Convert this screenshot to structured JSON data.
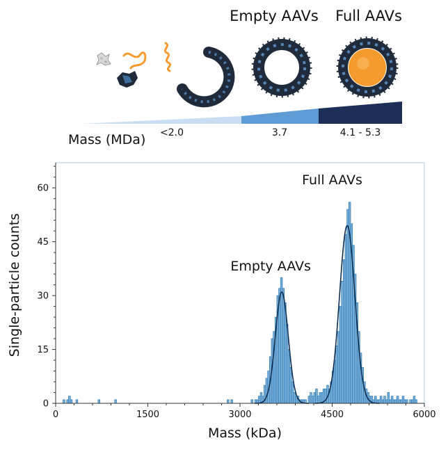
{
  "header": {
    "empty_label": "Empty AAVs",
    "full_label": "Full AAVs",
    "mass_label": "Mass (MDa)",
    "wedge_labels": [
      "<2.0",
      "3.7",
      "4.1 - 5.3"
    ]
  },
  "colors": {
    "bar_fill": "#7fb1d9",
    "bar_edge": "#2f7fb9",
    "fit_curve": "#0e2f52",
    "wedge_light": "#c9def3",
    "wedge_mid": "#5f9cd5",
    "wedge_dark": "#1d2f57",
    "orange": "#f59a2e",
    "capsid": "#1f2b3a"
  },
  "chart_data": {
    "type": "bar",
    "title": "",
    "xlabel": "Mass (kDa)",
    "ylabel": "Single-particle counts",
    "xlim": [
      0,
      6000
    ],
    "ylim": [
      0,
      67
    ],
    "xticks": [
      0,
      1500,
      3000,
      4500,
      6000
    ],
    "yticks": [
      0,
      15,
      30,
      45,
      60
    ],
    "bin_width": 30,
    "annotations": [
      {
        "text": "Empty AAVs",
        "x": 3500,
        "y": 37
      },
      {
        "text": "Full AAVs",
        "x": 4500,
        "y": 61
      }
    ],
    "histogram": [
      [
        120,
        1
      ],
      [
        180,
        1
      ],
      [
        210,
        2
      ],
      [
        240,
        1
      ],
      [
        330,
        1
      ],
      [
        690,
        1
      ],
      [
        960,
        1
      ],
      [
        2790,
        1
      ],
      [
        2850,
        1
      ],
      [
        3180,
        1
      ],
      [
        3240,
        1
      ],
      [
        3270,
        1
      ],
      [
        3300,
        2
      ],
      [
        3330,
        3
      ],
      [
        3360,
        2
      ],
      [
        3390,
        5
      ],
      [
        3420,
        7
      ],
      [
        3450,
        9
      ],
      [
        3480,
        13
      ],
      [
        3510,
        18
      ],
      [
        3540,
        20
      ],
      [
        3570,
        24
      ],
      [
        3600,
        30
      ],
      [
        3630,
        32
      ],
      [
        3660,
        35
      ],
      [
        3690,
        32
      ],
      [
        3720,
        28
      ],
      [
        3750,
        22
      ],
      [
        3780,
        15
      ],
      [
        3810,
        10
      ],
      [
        3840,
        6
      ],
      [
        3870,
        3
      ],
      [
        3900,
        2
      ],
      [
        3930,
        2
      ],
      [
        3960,
        1
      ],
      [
        3990,
        1
      ],
      [
        4020,
        1
      ],
      [
        4050,
        1
      ],
      [
        4110,
        2
      ],
      [
        4140,
        3
      ],
      [
        4170,
        2
      ],
      [
        4200,
        3
      ],
      [
        4230,
        4
      ],
      [
        4260,
        2
      ],
      [
        4290,
        3
      ],
      [
        4320,
        3
      ],
      [
        4350,
        4
      ],
      [
        4380,
        4
      ],
      [
        4410,
        5
      ],
      [
        4440,
        4
      ],
      [
        4470,
        6
      ],
      [
        4500,
        9
      ],
      [
        4530,
        12
      ],
      [
        4560,
        16
      ],
      [
        4590,
        20
      ],
      [
        4620,
        27
      ],
      [
        4650,
        34
      ],
      [
        4680,
        40
      ],
      [
        4710,
        47
      ],
      [
        4740,
        54
      ],
      [
        4770,
        56
      ],
      [
        4800,
        50
      ],
      [
        4830,
        44
      ],
      [
        4860,
        36
      ],
      [
        4890,
        28
      ],
      [
        4920,
        20
      ],
      [
        4950,
        14
      ],
      [
        4980,
        10
      ],
      [
        5010,
        6
      ],
      [
        5040,
        4
      ],
      [
        5070,
        3
      ],
      [
        5100,
        2
      ],
      [
        5130,
        2
      ],
      [
        5160,
        1
      ],
      [
        5190,
        2
      ],
      [
        5220,
        1
      ],
      [
        5250,
        1
      ],
      [
        5280,
        2
      ],
      [
        5310,
        1
      ],
      [
        5340,
        2
      ],
      [
        5370,
        1
      ],
      [
        5400,
        3
      ],
      [
        5430,
        1
      ],
      [
        5460,
        2
      ],
      [
        5490,
        1
      ],
      [
        5520,
        1
      ],
      [
        5550,
        2
      ],
      [
        5580,
        1
      ],
      [
        5610,
        1
      ],
      [
        5640,
        2
      ],
      [
        5670,
        1
      ],
      [
        5700,
        1
      ],
      [
        5760,
        1
      ],
      [
        5790,
        1
      ],
      [
        5820,
        2
      ],
      [
        5850,
        1
      ]
    ],
    "fits": [
      {
        "mean": 3680,
        "sigma": 105,
        "amplitude": 31
      },
      {
        "mean": 4745,
        "sigma": 125,
        "amplitude": 49.5
      }
    ]
  }
}
